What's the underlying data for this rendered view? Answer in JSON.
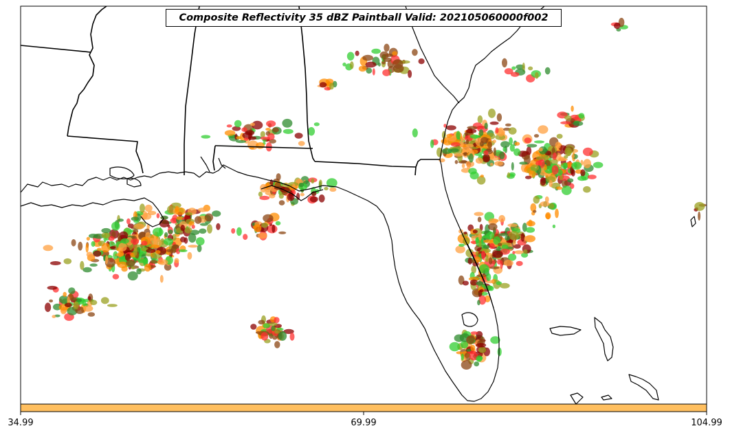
{
  "map": {
    "title": "Composite Reflectivity 35 dBZ Paintball Valid: 202105060000f002",
    "region": "Southeastern United States / Florida",
    "colorbar": {
      "color": "#ffbf5f",
      "ticks": [
        "34.99",
        "69.99",
        "104.99"
      ]
    },
    "paintball_colors": [
      "#2e8b2e",
      "#32cd32",
      "#ff3030",
      "#ff8c00",
      "#8b0000",
      "#9aa020",
      "#ffa040",
      "#8b4513"
    ],
    "coastline_color": "#000000",
    "background": "#ffffff"
  }
}
